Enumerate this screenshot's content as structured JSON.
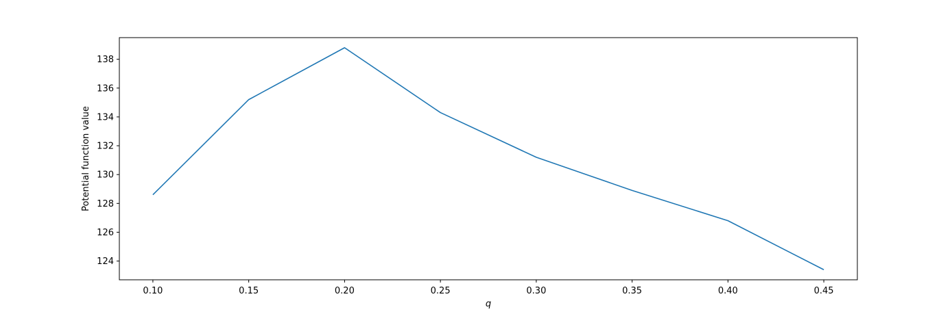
{
  "chart_data": {
    "type": "line",
    "title": "",
    "xlabel": "q",
    "ylabel": "Potential function value",
    "x": [
      0.1,
      0.15,
      0.2,
      0.25,
      0.3,
      0.35,
      0.4,
      0.45
    ],
    "series": [
      {
        "values": [
          128.6,
          135.2,
          138.8,
          134.3,
          131.2,
          128.9,
          126.8,
          123.4
        ],
        "color": "#1f77b4"
      }
    ],
    "xlim": [
      0.0825,
      0.4675
    ],
    "ylim": [
      122.7,
      139.5
    ],
    "xticks": [
      "0.10",
      "0.15",
      "0.20",
      "0.25",
      "0.30",
      "0.35",
      "0.40",
      "0.45"
    ],
    "yticks": [
      "124",
      "126",
      "128",
      "130",
      "132",
      "134",
      "136",
      "138"
    ],
    "grid": false,
    "legend": "none"
  }
}
